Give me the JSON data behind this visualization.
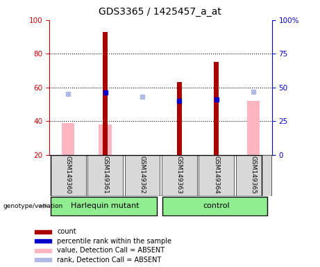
{
  "title": "GDS3365 / 1425457_a_at",
  "samples": [
    "GSM149360",
    "GSM149361",
    "GSM149362",
    "GSM149363",
    "GSM149364",
    "GSM149365"
  ],
  "count_values": [
    null,
    93,
    null,
    63,
    75,
    null
  ],
  "rank_values": [
    null,
    57,
    null,
    52,
    53,
    null
  ],
  "absent_value_values": [
    39,
    38,
    null,
    null,
    null,
    52
  ],
  "absent_rank_values": [
    45,
    null,
    43,
    null,
    null,
    47
  ],
  "ylim_left": [
    20,
    100
  ],
  "ylim_right": [
    0,
    100
  ],
  "yticks_left": [
    20,
    40,
    60,
    80,
    100
  ],
  "yticks_right": [
    0,
    25,
    50,
    75,
    100
  ],
  "ytick_labels_right": [
    "0",
    "25",
    "50",
    "75",
    "100%"
  ],
  "left_axis_color": "#cc0000",
  "right_axis_color": "#0000cc",
  "count_color": "#aa0000",
  "rank_color": "#0000cc",
  "absent_value_color": "#ffb6c1",
  "absent_rank_color": "#b0b8e8",
  "sample_label_bg": "#d8d8d8",
  "group_green": "#90EE90",
  "grid_lines": [
    40,
    60,
    80
  ],
  "legend_items": [
    {
      "color": "#aa0000",
      "label": "count"
    },
    {
      "color": "#0000cc",
      "label": "percentile rank within the sample"
    },
    {
      "color": "#ffb6c1",
      "label": "value, Detection Call = ABSENT"
    },
    {
      "color": "#b0b8e8",
      "label": "rank, Detection Call = ABSENT"
    }
  ],
  "harlequin_range": [
    0,
    2
  ],
  "control_range": [
    3,
    5
  ]
}
